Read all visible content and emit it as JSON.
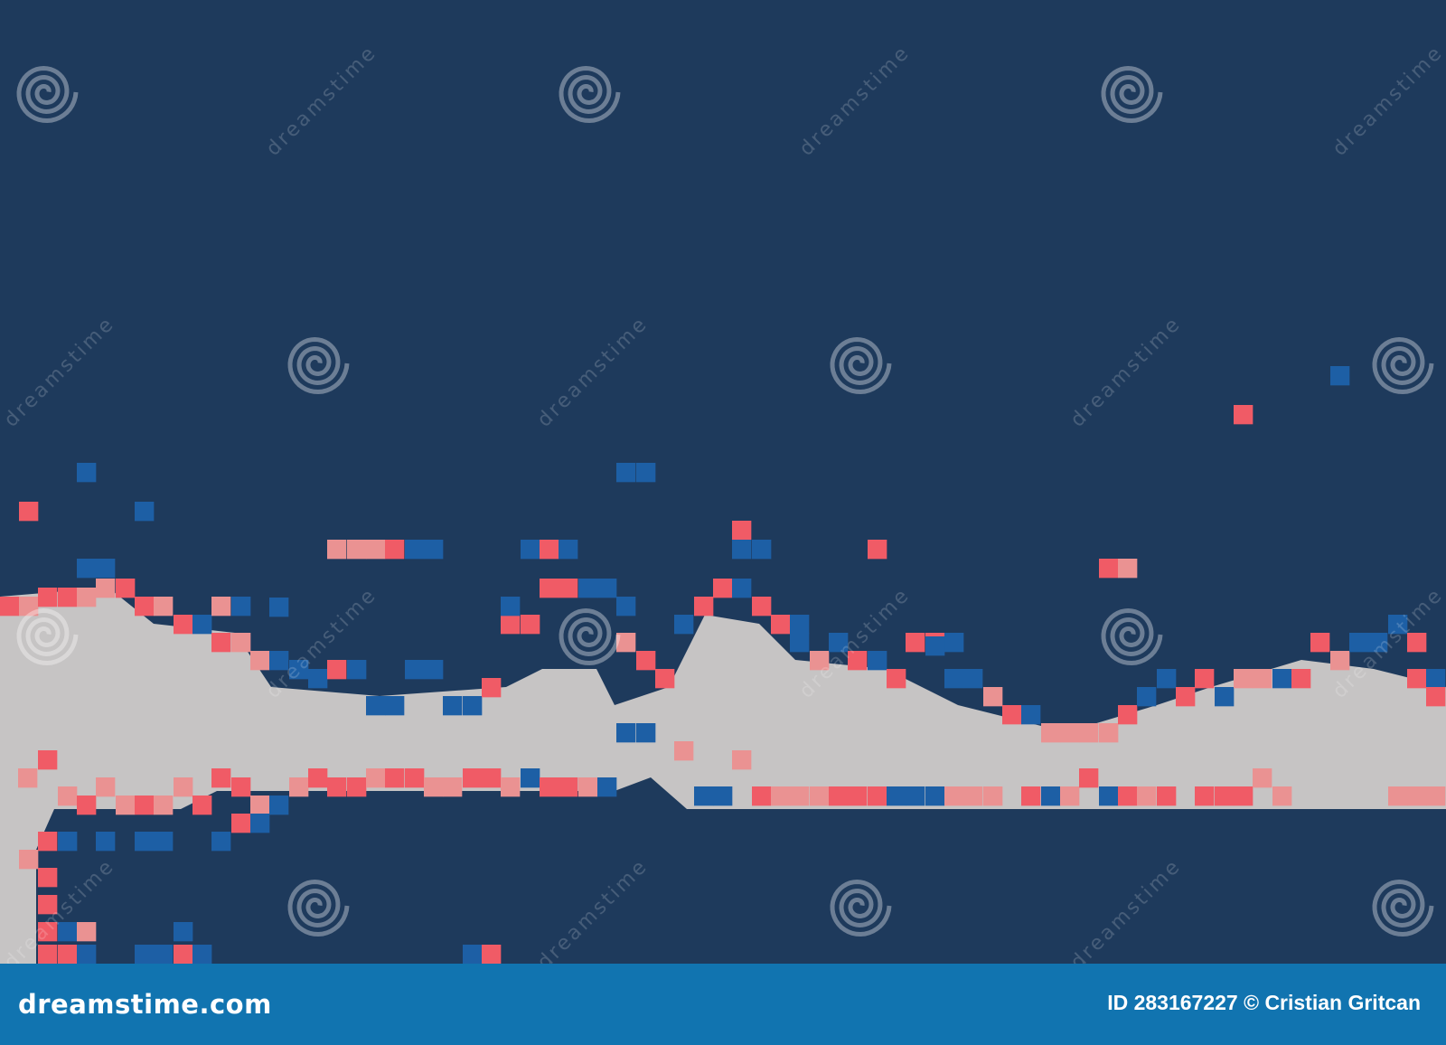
{
  "footer": {
    "logo_text": "dreamstime.com",
    "credit": "ID 283167227 © Cristian Gritcan"
  },
  "watermark": {
    "text": "dreamstime",
    "icon": "spiral-logo-icon"
  },
  "colors": {
    "background": "#1e3a5c",
    "grey": "#c6c4c4",
    "pink_light": "#ea9292",
    "pink": "#f05b66",
    "blue": "#1d5fa5",
    "footer": "#1174b0"
  }
}
